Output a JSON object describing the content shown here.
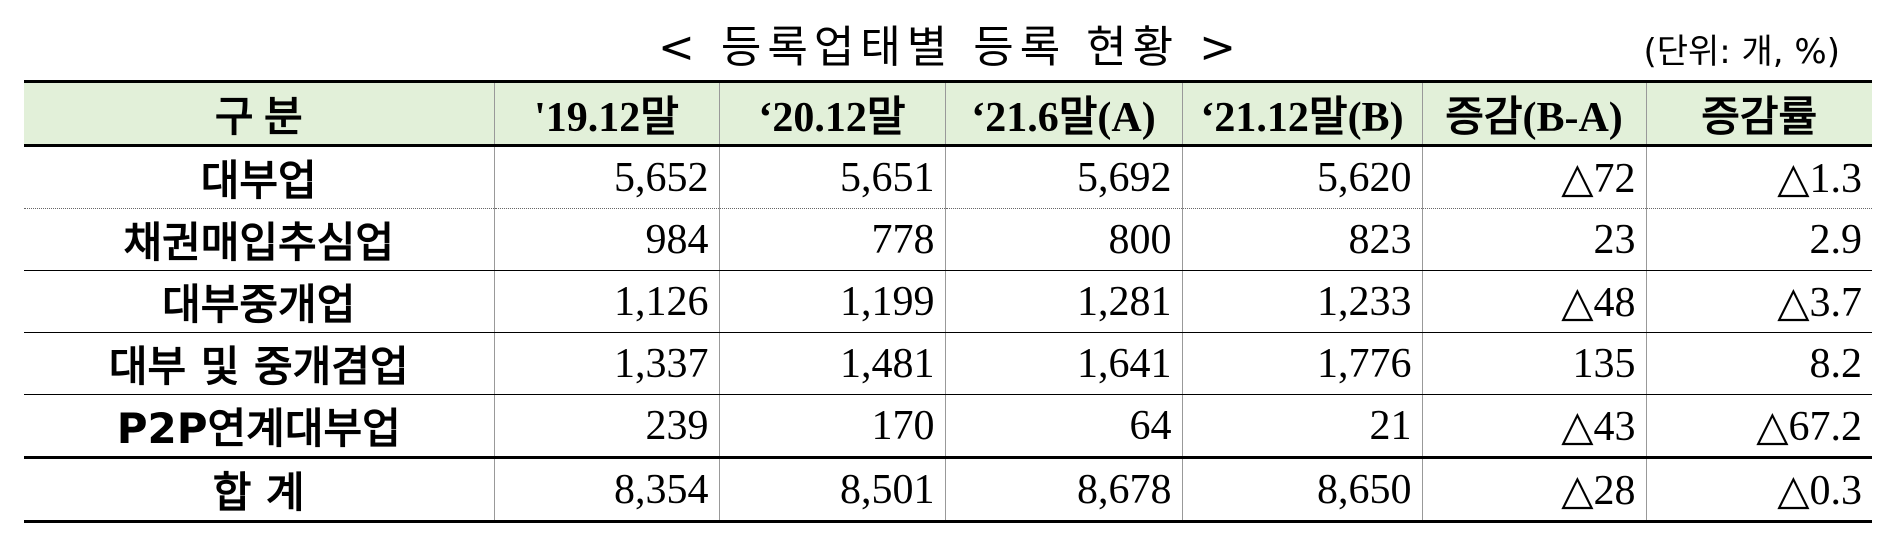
{
  "title": "< 등록업태별 등록 현황 >",
  "unit": "(단위: 개, %)",
  "table": {
    "header": [
      "구   분",
      "'19.12말",
      "‘20.12말",
      "‘21.6말(A)",
      "‘21.12말(B)",
      "증감(B-A)",
      "증감률"
    ],
    "rows": [
      [
        "대부업",
        "5,652",
        "5,651",
        "5,692",
        "5,620",
        "△72",
        "△1.3"
      ],
      [
        "채권매입추심업",
        "984",
        "778",
        "800",
        "823",
        "23",
        "2.9"
      ],
      [
        "대부중개업",
        "1,126",
        "1,199",
        "1,281",
        "1,233",
        "△48",
        "△3.7"
      ],
      [
        "대부 및 중개겸업",
        "1,337",
        "1,481",
        "1,641",
        "1,776",
        "135",
        "8.2"
      ],
      [
        "P2P연계대부업",
        "239",
        "170",
        "64",
        "21",
        "△43",
        "△67.2"
      ],
      [
        "합   계",
        "8,354",
        "8,501",
        "8,678",
        "8,650",
        "△28",
        "△0.3"
      ]
    ]
  }
}
